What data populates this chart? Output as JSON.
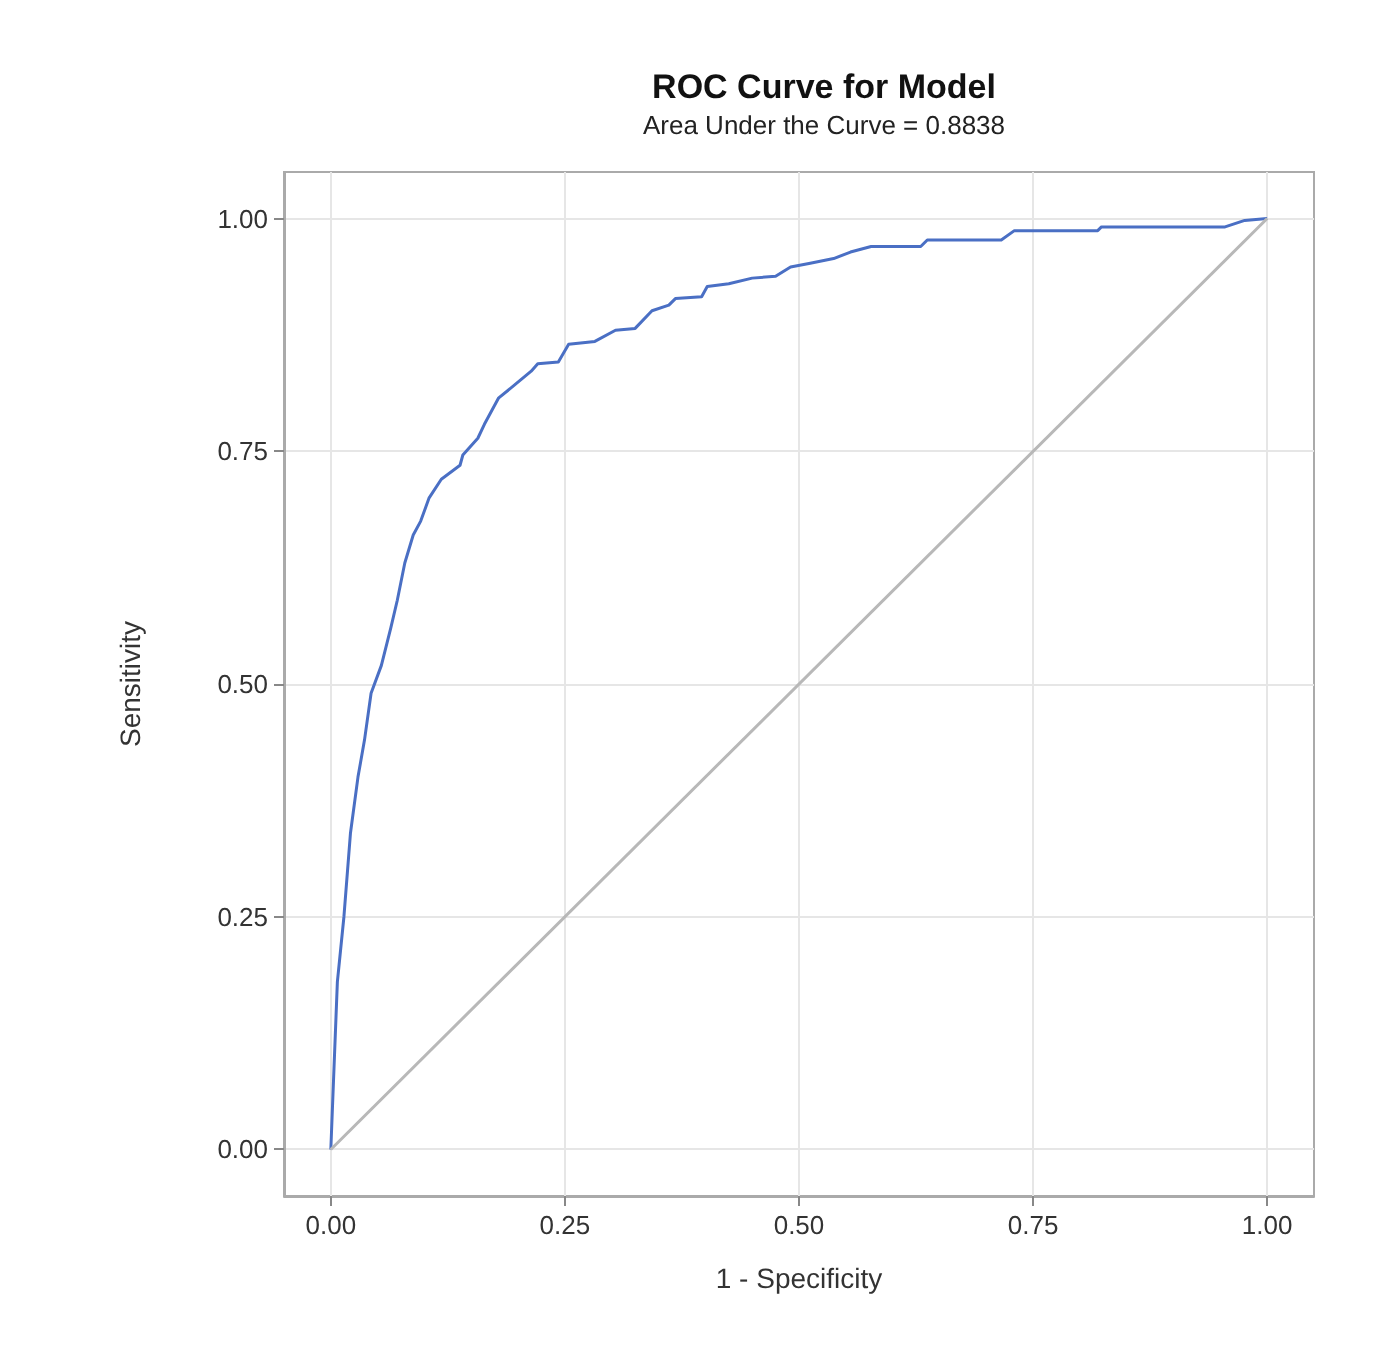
{
  "chart_data": {
    "type": "line",
    "title": "ROC Curve for Model",
    "subtitle": "Area Under the Curve = 0.8838",
    "xlabel": "1 - Specificity",
    "ylabel": "Sensitivity",
    "series": [
      {
        "color": "#4a6fc4",
        "x": [
          0,
          0.007,
          0.014,
          0.021,
          0.029,
          0.036,
          0.043,
          0.054,
          0.064,
          0.071,
          0.079,
          0.088,
          0.096,
          0.105,
          0.118,
          0.138,
          0.141,
          0.157,
          0.164,
          0.179,
          0.196,
          0.214,
          0.221,
          0.243,
          0.254,
          0.282,
          0.304,
          0.325,
          0.343,
          0.361,
          0.368,
          0.396,
          0.402,
          0.425,
          0.45,
          0.475,
          0.491,
          0.512,
          0.537,
          0.555,
          0.577,
          0.63,
          0.637,
          0.716,
          0.73,
          0.819,
          0.823,
          0.955,
          0.976,
          1
        ],
        "values": [
          0,
          0.18,
          0.25,
          0.34,
          0.4,
          0.44,
          0.49,
          0.52,
          0.56,
          0.59,
          0.63,
          0.66,
          0.675,
          0.7,
          0.72,
          0.735,
          0.746,
          0.764,
          0.779,
          0.807,
          0.821,
          0.836,
          0.844,
          0.846,
          0.865,
          0.868,
          0.88,
          0.882,
          0.901,
          0.907,
          0.914,
          0.916,
          0.927,
          0.93,
          0.936,
          0.938,
          0.948,
          0.952,
          0.957,
          0.964,
          0.97,
          0.97,
          0.977,
          0.977,
          0.987,
          0.987,
          0.991,
          0.991,
          0.998,
          1
        ]
      },
      {
        "color": "#b8b8b8",
        "x": [
          0,
          1
        ],
        "values": [
          0,
          1
        ]
      }
    ],
    "xlim": [
      -0.05,
      1.05
    ],
    "ylim": [
      -0.05,
      1.05
    ],
    "xticks": [
      {
        "value": 0,
        "label": "0.00"
      },
      {
        "value": 0.25,
        "label": "0.25"
      },
      {
        "value": 0.5,
        "label": "0.50"
      },
      {
        "value": 0.75,
        "label": "0.75"
      },
      {
        "value": 1,
        "label": "1.00"
      }
    ],
    "yticks": [
      {
        "value": 0,
        "label": "0.00"
      },
      {
        "value": 0.25,
        "label": "0.25"
      },
      {
        "value": 0.5,
        "label": "0.50"
      },
      {
        "value": 0.75,
        "label": "0.75"
      },
      {
        "value": 1,
        "label": "1.00"
      }
    ],
    "grid": true,
    "marker": "none",
    "line_style": "solid"
  }
}
